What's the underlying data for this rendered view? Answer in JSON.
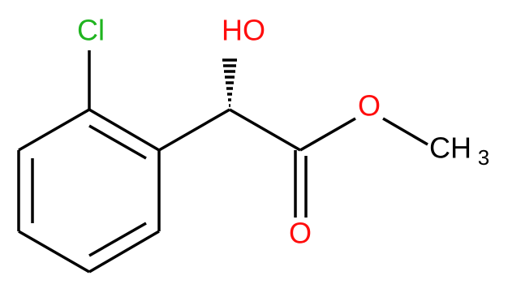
{
  "nodes": [
    {
      "label": "Cl"
    },
    {
      "label": "HO"
    },
    {
      "label": "O"
    },
    {
      "label": "O"
    },
    {
      "label": "CH",
      "subscript": "3"
    }
  ]
}
